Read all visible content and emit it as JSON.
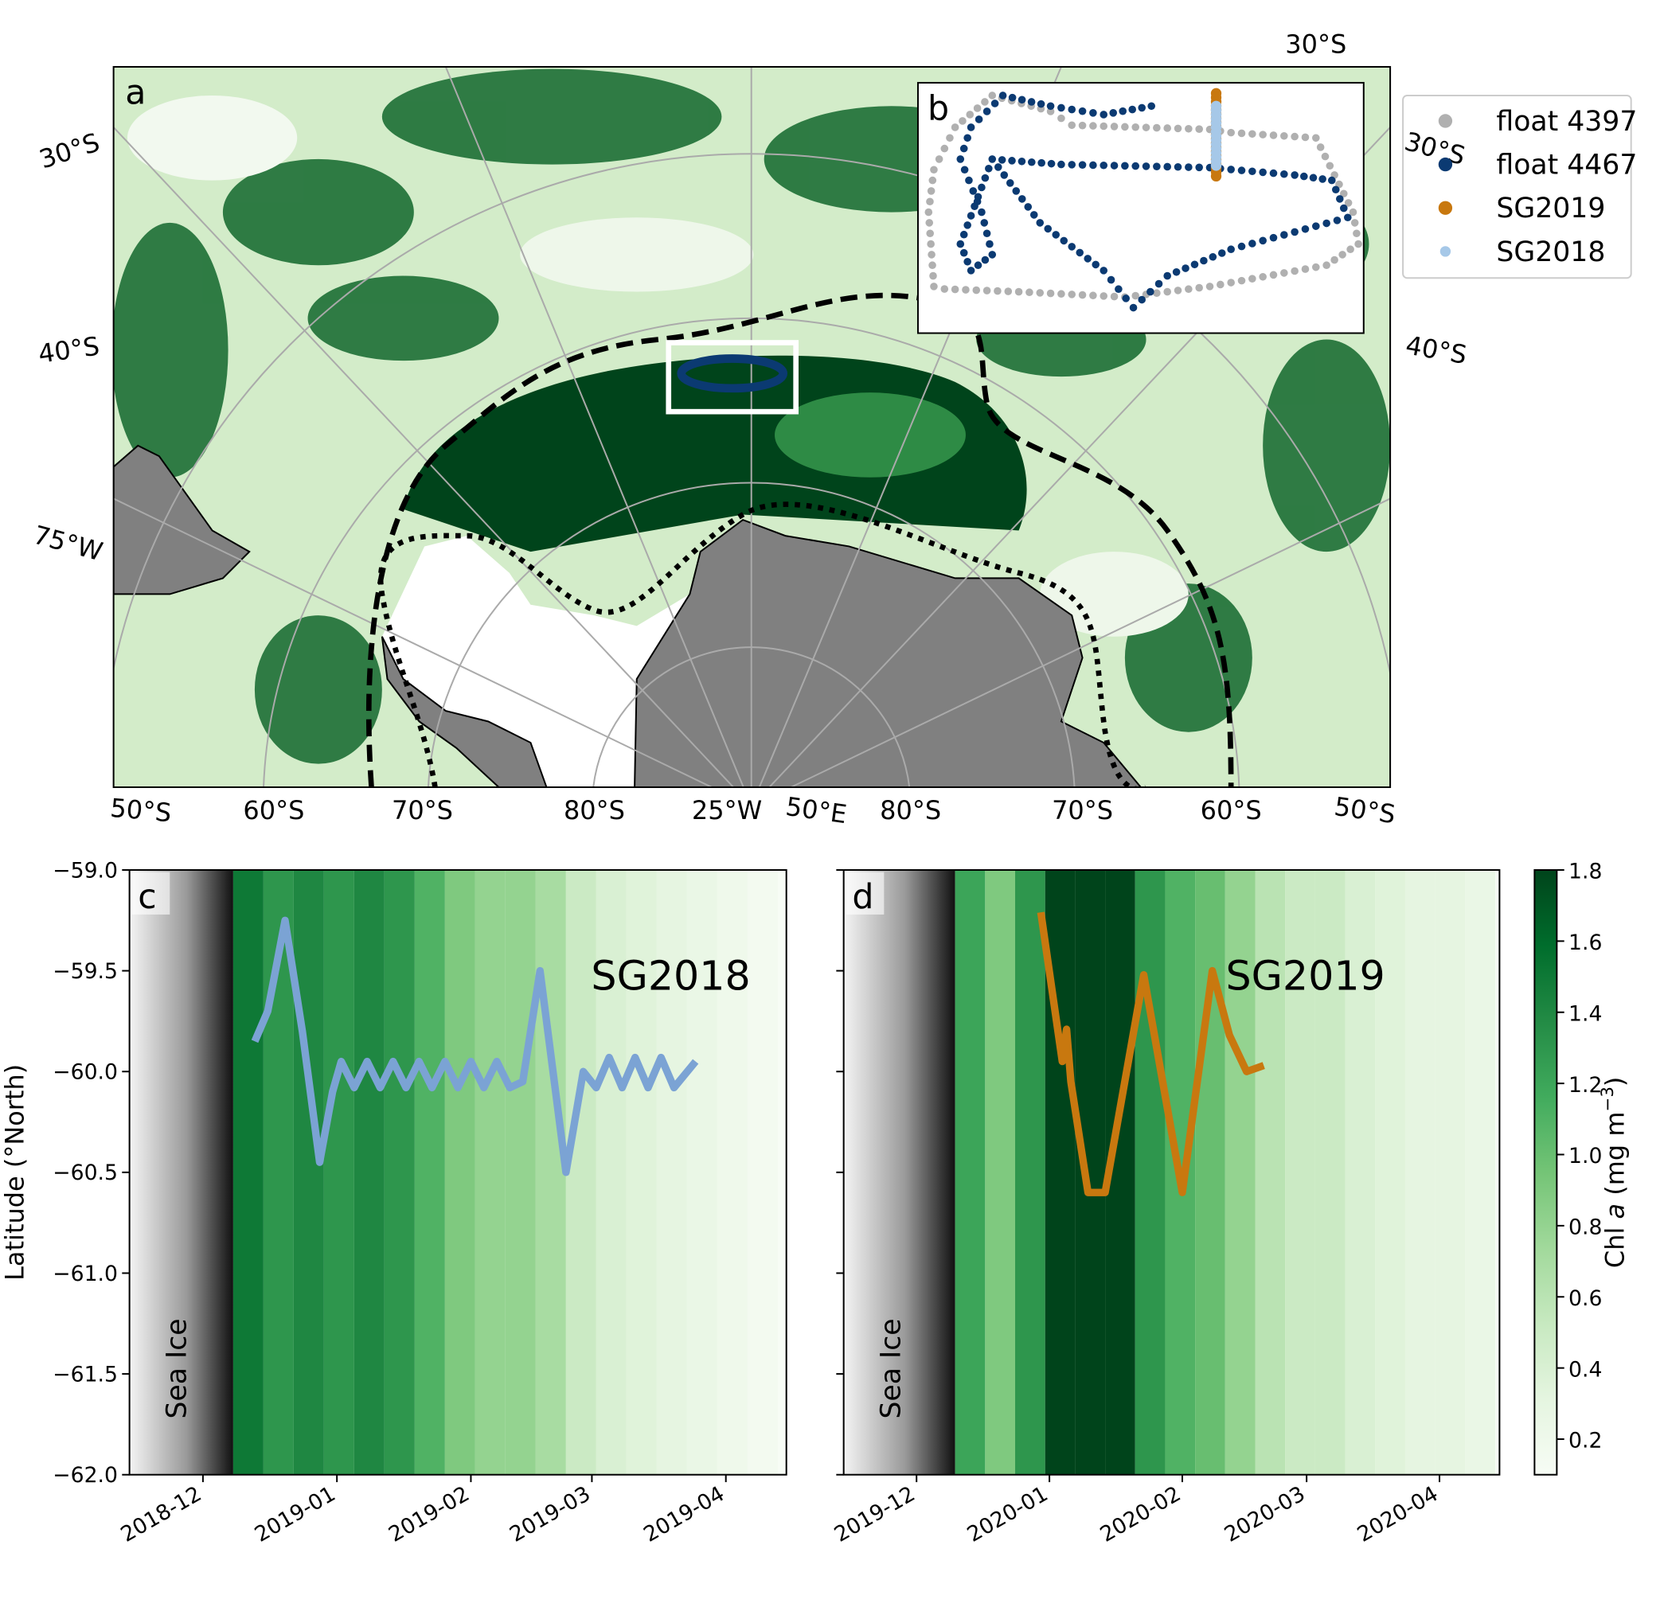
{
  "chart_data": [
    {
      "type": "map",
      "panel_label": "a",
      "labels": [
        "30°S",
        "30°S",
        "40°S",
        "75°W",
        "30°S",
        "40°S",
        "50°S",
        "60°S",
        "70°S",
        "80°S",
        "25°W",
        "50°E",
        "80°S",
        "70°S",
        "60°S",
        "50°S"
      ]
    },
    {
      "type": "scatter",
      "panel_label": "b",
      "series": [
        {
          "name": "float 4397",
          "color": "#b0b0b0"
        },
        {
          "name": "float 4467",
          "color": "#0b3a72"
        },
        {
          "name": "SG2019",
          "color": "#c8780f"
        },
        {
          "name": "SG2018",
          "color": "#a6c8e8"
        }
      ]
    },
    {
      "type": "heatmap",
      "panel_label": "c",
      "annotation": "Sea Ice",
      "ylabel": "Latitude (°North)",
      "xlim": [
        "2018-11-14",
        "2019-04-15"
      ],
      "xticks": [
        {
          "value": "2018-12-01",
          "label": "2018-12"
        },
        {
          "value": "2019-01-01",
          "label": "2019-01"
        },
        {
          "value": "2019-02-01",
          "label": "2019-02"
        },
        {
          "value": "2019-03-01",
          "label": "2019-03"
        },
        {
          "value": "2019-04-01",
          "label": "2019-04"
        }
      ],
      "ylim": [
        -62,
        -59
      ],
      "yticks": [
        {
          "value": -62,
          "label": "−62.0"
        },
        {
          "value": -61.5,
          "label": "−61.5"
        },
        {
          "value": -61,
          "label": "−61.0"
        },
        {
          "value": -60.5,
          "label": "−60.5"
        },
        {
          "value": -60,
          "label": "−60.0"
        },
        {
          "value": -59.5,
          "label": "−59.5"
        },
        {
          "value": -59,
          "label": "−59.0"
        }
      ],
      "columns": {
        "bins": [
          "2018-12-08",
          "2018-12-15",
          "2018-12-22",
          "2018-12-29",
          "2019-01-05",
          "2019-01-12",
          "2019-01-19",
          "2019-01-26",
          "2019-02-02",
          "2019-02-09",
          "2019-02-16",
          "2019-02-23",
          "2019-03-02",
          "2019-03-09",
          "2019-03-16",
          "2019-03-23",
          "2019-03-30",
          "2019-04-06",
          "2019-04-13"
        ],
        "values": [
          1.5,
          1.3,
          1.4,
          1.3,
          1.4,
          1.3,
          1.1,
          0.9,
          0.8,
          0.8,
          0.7,
          0.5,
          0.4,
          0.35,
          0.3,
          0.25,
          0.2,
          0.15
        ]
      },
      "series": [
        {
          "name": "SG2018",
          "color": "#7ba3d4",
          "x": [
            "2018-12-13",
            "2018-12-16",
            "2018-12-20",
            "2018-12-24",
            "2018-12-28",
            "2018-12-31",
            "2019-01-02",
            "2019-01-05",
            "2019-01-08",
            "2019-01-11",
            "2019-01-14",
            "2019-01-17",
            "2019-01-20",
            "2019-01-23",
            "2019-01-26",
            "2019-01-29",
            "2019-02-01",
            "2019-02-04",
            "2019-02-07",
            "2019-02-10",
            "2019-02-13",
            "2019-02-17",
            "2019-02-23",
            "2019-02-27",
            "2019-03-02",
            "2019-03-05",
            "2019-03-08",
            "2019-03-11",
            "2019-03-14",
            "2019-03-17",
            "2019-03-20",
            "2019-03-25"
          ],
          "values": [
            -59.85,
            -59.7,
            -59.25,
            -59.8,
            -60.45,
            -60.1,
            -59.95,
            -60.08,
            -59.95,
            -60.08,
            -59.95,
            -60.08,
            -59.95,
            -60.08,
            -59.95,
            -60.08,
            -59.95,
            -60.08,
            -59.95,
            -60.08,
            -60.05,
            -59.5,
            -60.5,
            -60.0,
            -60.08,
            -59.93,
            -60.08,
            -59.93,
            -60.08,
            -59.93,
            -60.08,
            -59.95
          ]
        }
      ]
    },
    {
      "type": "heatmap",
      "panel_label": "d",
      "annotation": "Sea Ice",
      "xlim": [
        "2019-11-14",
        "2020-04-15"
      ],
      "xticks": [
        {
          "value": "2019-12-01",
          "label": "2019-12"
        },
        {
          "value": "2020-01-01",
          "label": "2020-01"
        },
        {
          "value": "2020-02-01",
          "label": "2020-02"
        },
        {
          "value": "2020-03-01",
          "label": "2020-03"
        },
        {
          "value": "2020-04-01",
          "label": "2020-04"
        }
      ],
      "ylim": [
        -62,
        -59
      ],
      "yticks": [
        -62,
        -61.5,
        -61,
        -60.5,
        -60,
        -59.5,
        -59
      ],
      "columns": {
        "bins": [
          "2019-12-10",
          "2019-12-17",
          "2019-12-24",
          "2019-12-31",
          "2020-01-07",
          "2020-01-14",
          "2020-01-21",
          "2020-01-28",
          "2020-02-04",
          "2020-02-11",
          "2020-02-18",
          "2020-02-25",
          "2020-03-03",
          "2020-03-10",
          "2020-03-17",
          "2020-03-24",
          "2020-03-31",
          "2020-04-07",
          "2020-04-14"
        ],
        "values": [
          1.2,
          0.9,
          1.3,
          1.8,
          1.8,
          1.8,
          1.3,
          1.1,
          1.0,
          0.8,
          0.6,
          0.5,
          0.5,
          0.4,
          0.35,
          0.3,
          0.3,
          0.25
        ]
      },
      "series": [
        {
          "name": "SG2019",
          "color": "#c8780f",
          "x": [
            "2019-12-30",
            "2020-01-04",
            "2020-01-05",
            "2020-01-06",
            "2020-01-10",
            "2020-01-14",
            "2020-01-23",
            "2020-02-01",
            "2020-02-08",
            "2020-02-12",
            "2020-02-16",
            "2020-02-20"
          ],
          "values": [
            -59.21,
            -59.95,
            -59.79,
            -60.05,
            -60.6,
            -60.6,
            -59.52,
            -60.6,
            -59.5,
            -59.82,
            -60.0,
            -59.97
          ]
        }
      ],
      "colorbar": {
        "label_parts": [
          "Chl ",
          "a",
          " (mg m",
          "−3",
          ")"
        ],
        "lim": [
          0.1,
          1.8
        ],
        "ticks": [
          0.2,
          0.4,
          0.6,
          0.8,
          {
            "value": 1,
            "label": "1.0"
          },
          1.2,
          1.4,
          1.6,
          1.8
        ]
      }
    }
  ]
}
